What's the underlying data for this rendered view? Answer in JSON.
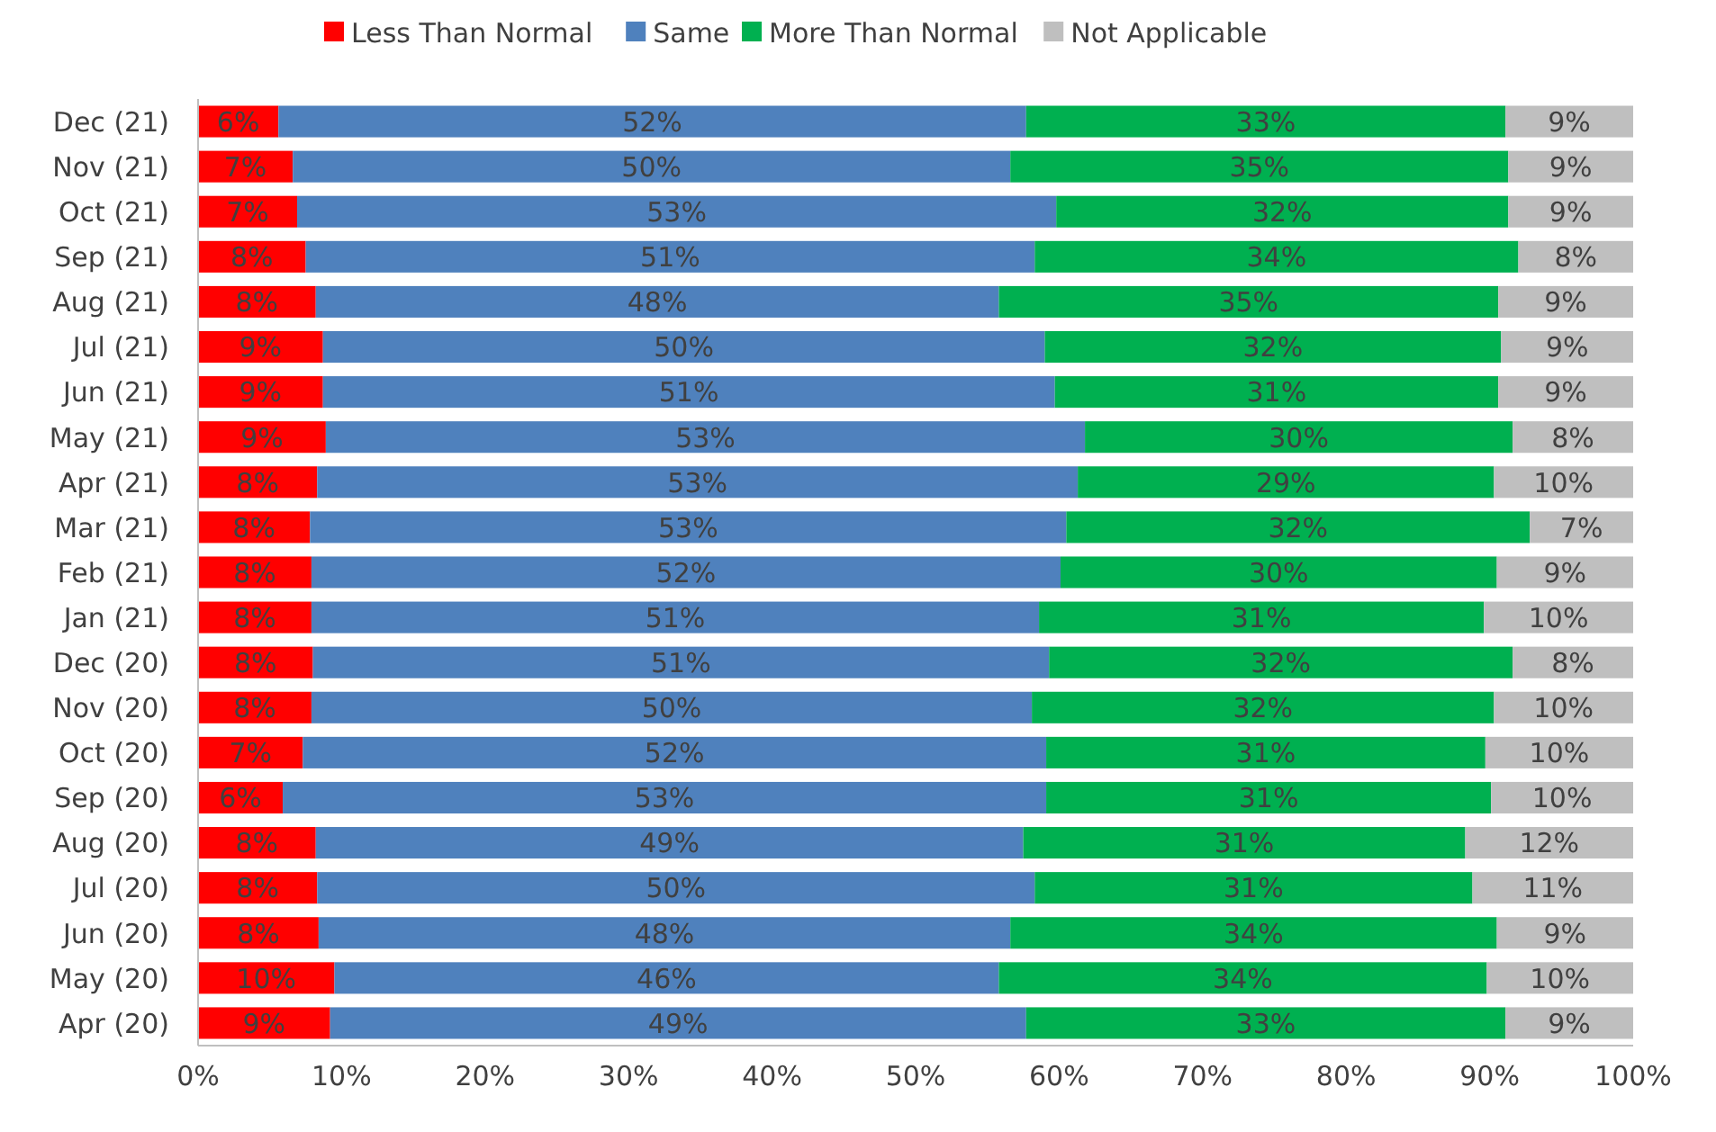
{
  "chart_data": {
    "type": "bar",
    "orientation": "horizontal",
    "stacked": true,
    "legend": "top",
    "data_labels": false,
    "categories": [
      "Dec (21)",
      "Nov (21)",
      "Oct (21)",
      "Sep (21)",
      "Aug (21)",
      "Jul (21)",
      "Jun (21)",
      "May (21)",
      "Apr (21)",
      "Mar (21)",
      "Feb (21)",
      "Jan (21)",
      "Dec (20)",
      "Nov (20)",
      "Oct (20)",
      "Sep (20)",
      "Aug (20)",
      "Jul (20)",
      "Jun (20)",
      "May (20)",
      "Apr (20)"
    ],
    "xlim": [
      0,
      100
    ],
    "xticks": [
      {
        "value": 0,
        "label": "0%"
      },
      {
        "value": 10,
        "label": "10%"
      },
      {
        "value": 20,
        "label": "20%"
      },
      {
        "value": 30,
        "label": "30%"
      },
      {
        "value": 40,
        "label": "40%"
      },
      {
        "value": 50,
        "label": "50%"
      },
      {
        "value": 60,
        "label": "60%"
      },
      {
        "value": 70,
        "label": "70%"
      },
      {
        "value": 80,
        "label": "80%"
      },
      {
        "value": 90,
        "label": "90%"
      },
      {
        "value": 100,
        "label": "100%"
      }
    ],
    "series": [
      {
        "name": "Less Than Normal",
        "color": "#ff0000",
        "values": [
          5.6,
          6.6,
          6.9,
          7.5,
          8.2,
          8.7,
          8.7,
          8.9,
          8.3,
          7.8,
          7.9,
          7.9,
          8,
          7.9,
          7.3,
          5.9,
          8.2,
          8.3,
          8.4,
          9.5,
          9.2
        ],
        "value_labels": [
          "6%",
          "7%",
          "7%",
          "8%",
          "8%",
          "9%",
          "9%",
          "9%",
          "8%",
          "8%",
          "8%",
          "8%",
          "8%",
          "8%",
          "7%",
          "6%",
          "8%",
          "8%",
          "8%",
          "10%",
          "9%"
        ]
      },
      {
        "name": "Same",
        "color": "#4f81bd",
        "values": [
          52.1,
          50,
          52.9,
          50.8,
          47.6,
          50.3,
          51,
          52.9,
          53,
          52.7,
          52.2,
          50.7,
          51.3,
          50.2,
          51.8,
          53.2,
          49.3,
          50,
          48.2,
          46.3,
          48.5
        ],
        "value_labels": [
          "52%",
          "50%",
          "53%",
          "51%",
          "48%",
          "50%",
          "51%",
          "53%",
          "53%",
          "53%",
          "52%",
          "51%",
          "51%",
          "50%",
          "52%",
          "53%",
          "49%",
          "50%",
          "48%",
          "46%",
          "49%"
        ]
      },
      {
        "name": "More Than Normal",
        "color": "#00b050",
        "values": [
          33.4,
          34.7,
          31.5,
          33.7,
          34.8,
          31.8,
          30.9,
          29.8,
          29,
          32.3,
          30.4,
          31,
          32.3,
          32.2,
          30.6,
          31,
          30.8,
          30.5,
          33.9,
          34,
          33.4
        ],
        "value_labels": [
          "33%",
          "35%",
          "32%",
          "34%",
          "35%",
          "32%",
          "31%",
          "30%",
          "29%",
          "32%",
          "30%",
          "31%",
          "32%",
          "32%",
          "31%",
          "31%",
          "31%",
          "31%",
          "34%",
          "34%",
          "33%"
        ]
      },
      {
        "name": "Not Applicable",
        "color": "#bfbfbf",
        "values": [
          8.9,
          8.7,
          8.7,
          8,
          9.4,
          9.2,
          9.4,
          8.4,
          9.7,
          7.2,
          9.5,
          10.4,
          8.4,
          9.7,
          10.3,
          9.9,
          11.7,
          11.2,
          9.5,
          10.2,
          8.9
        ],
        "value_labels": [
          "9%",
          "9%",
          "9%",
          "8%",
          "9%",
          "9%",
          "9%",
          "8%",
          "10%",
          "7%",
          "9%",
          "10%",
          "8%",
          "10%",
          "10%",
          "10%",
          "12%",
          "11%",
          "9%",
          "10%",
          "9%"
        ]
      }
    ]
  }
}
